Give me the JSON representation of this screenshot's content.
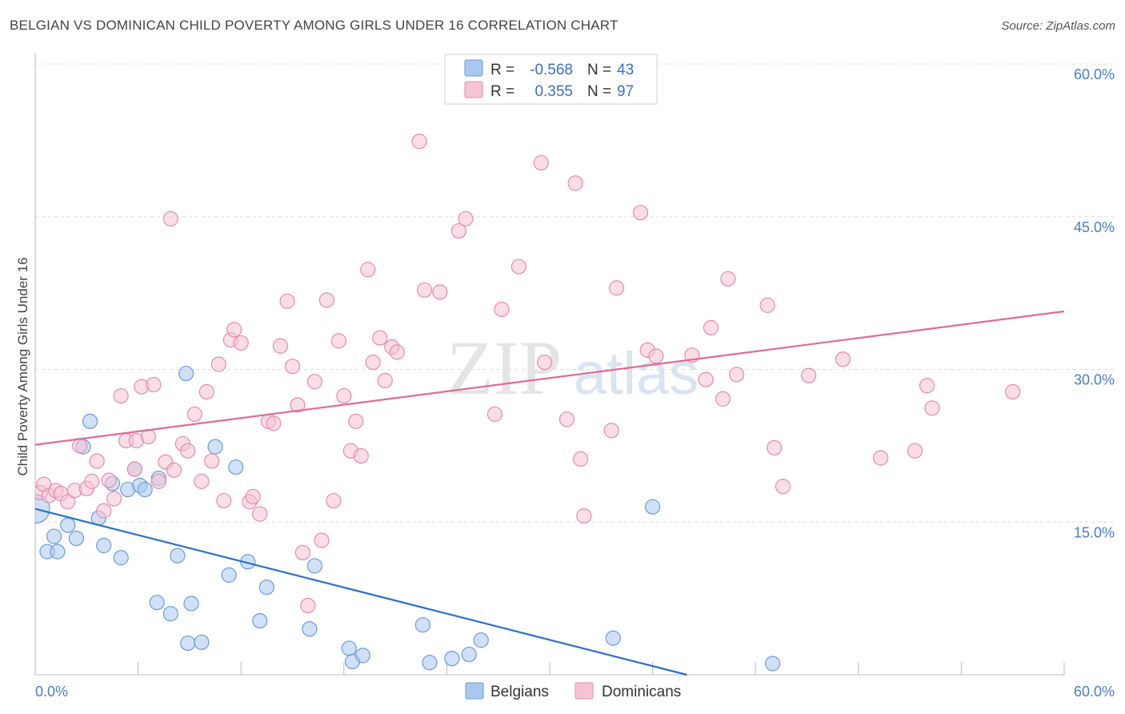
{
  "title": "BELGIAN VS DOMINICAN CHILD POVERTY AMONG GIRLS UNDER 16 CORRELATION CHART",
  "source": "Source: ZipAtlas.com",
  "chart_data": {
    "type": "scatter",
    "title": "BELGIAN VS DOMINICAN CHILD POVERTY AMONG GIRLS UNDER 16 CORRELATION CHART",
    "ylabel": "Child Poverty Among Girls Under 16",
    "xlabel": "",
    "xlim": [
      0,
      60
    ],
    "ylim": [
      0,
      60
    ],
    "x_tick_labels": [
      {
        "value": 0,
        "label": "0.0%"
      },
      {
        "value": 60,
        "label": "60.0%"
      }
    ],
    "y_tick_labels": [
      {
        "value": 15,
        "label": "15.0%"
      },
      {
        "value": 30,
        "label": "30.0%"
      },
      {
        "value": 45,
        "label": "45.0%"
      },
      {
        "value": 60,
        "label": "60.0%"
      }
    ],
    "grid": true,
    "watermark": {
      "zip": "ZIP",
      "atlas": "atlas"
    },
    "legend_position": "top-center",
    "stats": [
      {
        "r_label": "R =",
        "r": "-0.568",
        "n_label": "N =",
        "n": "43"
      },
      {
        "r_label": "R =",
        "r": "0.355",
        "n_label": "N =",
        "n": "97"
      }
    ],
    "series": [
      {
        "name": "Belgians",
        "fill": "#a9c8f0",
        "stroke": "#6a9bd8",
        "line_color": "#2a6fd0",
        "trend": [
          [
            0,
            16.3
          ],
          [
            38,
            0
          ]
        ],
        "points": [
          [
            0.0,
            16.3
          ],
          [
            0.7,
            12.1
          ],
          [
            1.1,
            13.6
          ],
          [
            1.3,
            12.1
          ],
          [
            1.9,
            14.7
          ],
          [
            2.4,
            13.4
          ],
          [
            2.8,
            22.4
          ],
          [
            3.2,
            24.9
          ],
          [
            3.7,
            15.4
          ],
          [
            4.0,
            12.7
          ],
          [
            4.5,
            18.8
          ],
          [
            5.0,
            11.5
          ],
          [
            5.4,
            18.2
          ],
          [
            5.8,
            20.2
          ],
          [
            6.1,
            18.6
          ],
          [
            6.4,
            18.2
          ],
          [
            7.2,
            19.3
          ],
          [
            7.1,
            7.1
          ],
          [
            7.9,
            6.0
          ],
          [
            8.3,
            11.7
          ],
          [
            8.9,
            3.1
          ],
          [
            9.1,
            7.0
          ],
          [
            9.7,
            3.2
          ],
          [
            8.8,
            29.6
          ],
          [
            10.5,
            22.4
          ],
          [
            11.3,
            9.8
          ],
          [
            11.7,
            20.4
          ],
          [
            12.4,
            11.1
          ],
          [
            13.1,
            5.3
          ],
          [
            13.5,
            8.6
          ],
          [
            16.0,
            4.5
          ],
          [
            16.3,
            10.7
          ],
          [
            18.3,
            2.6
          ],
          [
            18.5,
            1.3
          ],
          [
            19.1,
            1.9
          ],
          [
            22.6,
            4.9
          ],
          [
            23.0,
            1.2
          ],
          [
            24.3,
            1.6
          ],
          [
            25.3,
            2.0
          ],
          [
            26.0,
            3.4
          ],
          [
            33.7,
            3.6
          ],
          [
            36.0,
            16.5
          ],
          [
            43.0,
            1.1
          ]
        ]
      },
      {
        "name": "Dominicans",
        "fill": "#f6c3d3",
        "stroke": "#e48ba9",
        "line_color": "#e06a95",
        "trend": [
          [
            0,
            22.6
          ],
          [
            60,
            35.7
          ]
        ],
        "points": [
          [
            0.3,
            17.9
          ],
          [
            0.5,
            18.7
          ],
          [
            0.8,
            17.6
          ],
          [
            1.2,
            18.1
          ],
          [
            1.5,
            17.8
          ],
          [
            1.9,
            17.0
          ],
          [
            2.3,
            18.1
          ],
          [
            2.6,
            22.5
          ],
          [
            3.0,
            18.3
          ],
          [
            3.3,
            19.0
          ],
          [
            3.6,
            21.0
          ],
          [
            4.0,
            16.1
          ],
          [
            4.3,
            19.1
          ],
          [
            4.6,
            17.3
          ],
          [
            5.0,
            27.4
          ],
          [
            5.3,
            23.0
          ],
          [
            5.8,
            20.2
          ],
          [
            5.9,
            23.0
          ],
          [
            6.2,
            28.3
          ],
          [
            6.6,
            23.4
          ],
          [
            6.9,
            28.5
          ],
          [
            7.2,
            19.0
          ],
          [
            7.6,
            20.9
          ],
          [
            7.9,
            44.8
          ],
          [
            8.1,
            20.1
          ],
          [
            8.6,
            22.7
          ],
          [
            8.9,
            22.0
          ],
          [
            9.3,
            25.6
          ],
          [
            9.7,
            19.0
          ],
          [
            10.0,
            27.8
          ],
          [
            10.3,
            21.0
          ],
          [
            10.7,
            30.5
          ],
          [
            11.0,
            17.1
          ],
          [
            11.4,
            32.9
          ],
          [
            11.6,
            33.9
          ],
          [
            12.0,
            32.6
          ],
          [
            12.5,
            17.0
          ],
          [
            12.7,
            17.5
          ],
          [
            13.1,
            15.8
          ],
          [
            13.6,
            24.9
          ],
          [
            13.9,
            24.7
          ],
          [
            14.3,
            32.3
          ],
          [
            14.7,
            36.7
          ],
          [
            15.0,
            30.3
          ],
          [
            15.3,
            26.5
          ],
          [
            15.6,
            12.0
          ],
          [
            15.9,
            6.8
          ],
          [
            16.3,
            28.8
          ],
          [
            16.7,
            13.2
          ],
          [
            17.0,
            36.8
          ],
          [
            17.4,
            17.1
          ],
          [
            17.7,
            32.8
          ],
          [
            18.0,
            27.4
          ],
          [
            18.4,
            22.0
          ],
          [
            18.7,
            24.9
          ],
          [
            19.0,
            21.5
          ],
          [
            19.4,
            39.8
          ],
          [
            19.7,
            30.7
          ],
          [
            20.1,
            33.1
          ],
          [
            20.4,
            28.9
          ],
          [
            20.8,
            32.2
          ],
          [
            21.1,
            31.7
          ],
          [
            22.4,
            52.4
          ],
          [
            22.7,
            37.8
          ],
          [
            23.6,
            37.6
          ],
          [
            24.7,
            43.6
          ],
          [
            25.1,
            44.8
          ],
          [
            26.8,
            25.6
          ],
          [
            27.2,
            35.9
          ],
          [
            28.2,
            40.1
          ],
          [
            29.5,
            50.3
          ],
          [
            29.7,
            30.7
          ],
          [
            31.0,
            25.1
          ],
          [
            31.5,
            48.3
          ],
          [
            31.8,
            21.2
          ],
          [
            32.0,
            15.6
          ],
          [
            33.6,
            24.0
          ],
          [
            33.9,
            38.0
          ],
          [
            35.3,
            45.4
          ],
          [
            35.7,
            31.9
          ],
          [
            36.2,
            31.3
          ],
          [
            38.3,
            31.4
          ],
          [
            39.1,
            29.0
          ],
          [
            39.4,
            34.1
          ],
          [
            40.1,
            27.1
          ],
          [
            40.4,
            38.9
          ],
          [
            40.9,
            29.5
          ],
          [
            42.7,
            36.3
          ],
          [
            43.1,
            22.3
          ],
          [
            43.6,
            18.5
          ],
          [
            45.1,
            29.4
          ],
          [
            47.1,
            31.0
          ],
          [
            49.3,
            21.3
          ],
          [
            51.3,
            22.0
          ],
          [
            52.0,
            28.4
          ],
          [
            52.3,
            26.2
          ],
          [
            57.0,
            27.8
          ]
        ]
      }
    ]
  }
}
